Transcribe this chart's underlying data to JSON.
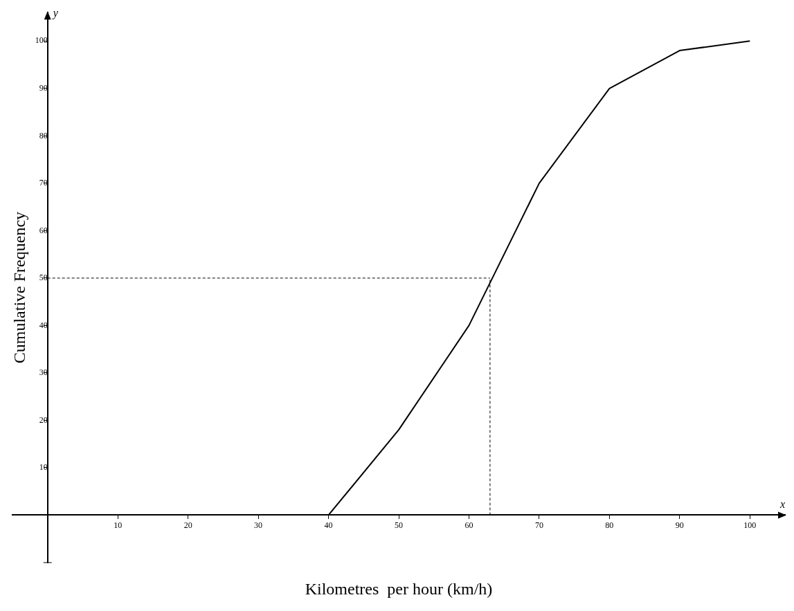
{
  "chart_data": {
    "type": "line",
    "xlabel": "Kilometres  per hour (km/h)",
    "ylabel": "Cumulative Frequency",
    "x": [
      40,
      50,
      60,
      70,
      80,
      90,
      100
    ],
    "series": [
      {
        "color": "#000000",
        "values": [
          0,
          18,
          40,
          70,
          90,
          98,
          100
        ]
      }
    ],
    "xlim": [
      -5,
      105
    ],
    "ylim": [
      -10,
      106
    ],
    "xticks": [
      10,
      20,
      30,
      40,
      50,
      60,
      70,
      80,
      90,
      100
    ],
    "yticks": [
      10,
      20,
      30,
      40,
      50,
      60,
      70,
      80,
      90,
      100
    ],
    "ref_lines": [
      {
        "axis": "y",
        "value": 50,
        "color": "#000000",
        "line_style": "dashed"
      },
      {
        "axis": "x",
        "value": 63,
        "color": "#000000",
        "line_style": "dashed"
      }
    ],
    "annotations": [
      "x",
      "y"
    ],
    "grid": false,
    "legend": false,
    "marker": "none",
    "line_style": "solid"
  }
}
